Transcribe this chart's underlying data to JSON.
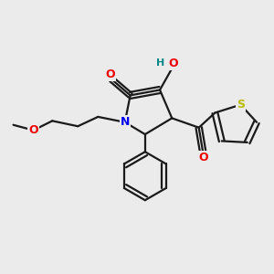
{
  "background_color": "#ebebeb",
  "bond_color": "#1a1a1a",
  "atom_colors": {
    "N": "#0000ee",
    "O": "#ee0000",
    "S": "#bbbb00",
    "H": "#008888",
    "C": "#1a1a1a"
  },
  "figsize": [
    3.0,
    3.0
  ],
  "dpi": 100
}
